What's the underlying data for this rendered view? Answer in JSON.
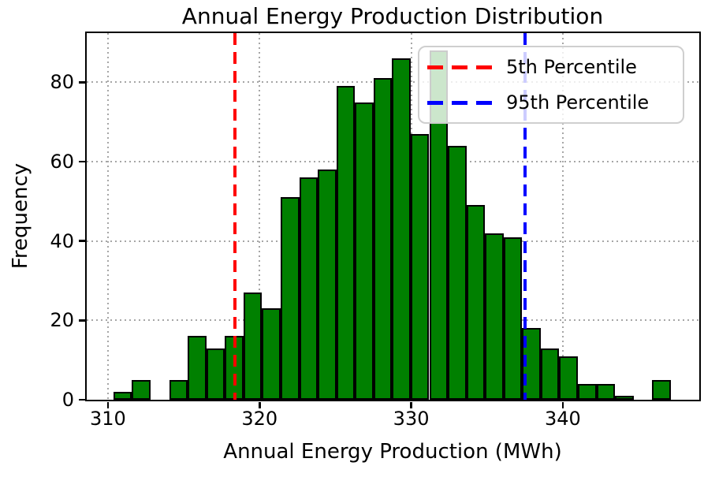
{
  "title": "Annual Energy Production Distribution",
  "chart_data": {
    "type": "bar",
    "subtype": "histogram",
    "title": "Annual Energy Production Distribution",
    "xlabel": "Annual Energy Production (MWh)",
    "ylabel": "Frequency",
    "x_ticks": [
      310,
      320,
      330,
      340
    ],
    "x_tick_labels": [
      "310",
      "320",
      "330",
      "340"
    ],
    "y_ticks": [
      0,
      20,
      40,
      60,
      80
    ],
    "y_tick_labels": [
      "0",
      "20",
      "40",
      "60",
      "80"
    ],
    "xlim": [
      308.6,
      349.0
    ],
    "ylim": [
      0,
      92.4
    ],
    "grid": "dotted, both axes",
    "grid_color": "#a6a6a6",
    "bar_color": "#008000",
    "bar_edge_color": "#000000",
    "total_samples": 1000,
    "bin_start_mwh": 310.36,
    "bin_width_mwh": 1.2254,
    "counts": [
      2,
      5,
      0,
      5,
      16,
      13,
      16,
      27,
      23,
      51,
      56,
      58,
      79,
      75,
      81,
      86,
      67,
      88,
      64,
      49,
      42,
      41,
      18,
      13,
      11,
      4,
      4,
      1,
      0,
      5
    ],
    "annotations": [
      {
        "label": "5th Percentile",
        "x": 318.4,
        "color": "#ff0000",
        "style": "dashed"
      },
      {
        "label": "95th Percentile",
        "x": 337.5,
        "color": "#0000ff",
        "style": "dashed"
      }
    ],
    "legend": {
      "position": "upper right",
      "frame_alpha": 0.8,
      "entries": [
        {
          "label": "5th Percentile",
          "color": "#ff0000"
        },
        {
          "label": "95th Percentile",
          "color": "#0000ff"
        }
      ]
    }
  }
}
